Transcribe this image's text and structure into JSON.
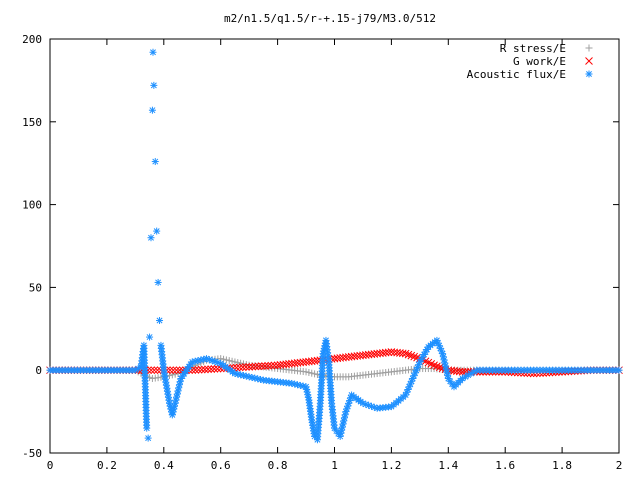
{
  "chart_data": {
    "type": "scatter",
    "title": "m2/n1.5/q1.5/r-+.15-j79/M3.0/512",
    "xlabel": "",
    "ylabel": "",
    "xlim": [
      0,
      2
    ],
    "ylim": [
      -50,
      200
    ],
    "x_ticks": [
      "0",
      "0.2",
      "0.4",
      "0.6",
      "0.8",
      "1",
      "1.2",
      "1.4",
      "1.6",
      "1.8",
      "2"
    ],
    "y_ticks": [
      "-50",
      "0",
      "50",
      "100",
      "150",
      "200"
    ],
    "grid": false,
    "legend_position": "top-right",
    "series": [
      {
        "name": "R stress/E",
        "marker": "plus",
        "color": "#a0a0a0",
        "points": [
          [
            0,
            0
          ],
          [
            0.3,
            0
          ],
          [
            0.33,
            -3
          ],
          [
            0.36,
            -5
          ],
          [
            0.4,
            -4
          ],
          [
            0.45,
            -2
          ],
          [
            0.5,
            2
          ],
          [
            0.55,
            6
          ],
          [
            0.6,
            7
          ],
          [
            0.65,
            5
          ],
          [
            0.7,
            3
          ],
          [
            0.75,
            2
          ],
          [
            0.8,
            1
          ],
          [
            0.85,
            0
          ],
          [
            0.9,
            -1
          ],
          [
            0.95,
            -3
          ],
          [
            1.0,
            -4
          ],
          [
            1.05,
            -4
          ],
          [
            1.1,
            -3
          ],
          [
            1.15,
            -2
          ],
          [
            1.2,
            -1
          ],
          [
            1.25,
            0
          ],
          [
            1.3,
            1
          ],
          [
            1.35,
            1
          ],
          [
            1.4,
            0
          ],
          [
            1.5,
            0
          ],
          [
            1.6,
            0
          ],
          [
            1.7,
            0
          ],
          [
            1.8,
            0
          ],
          [
            1.9,
            0
          ],
          [
            2.0,
            0
          ]
        ]
      },
      {
        "name": "G work/E",
        "marker": "cross",
        "color": "#ff0000",
        "points": [
          [
            0,
            0
          ],
          [
            0.3,
            0
          ],
          [
            0.4,
            0
          ],
          [
            0.5,
            0
          ],
          [
            0.6,
            1
          ],
          [
            0.7,
            2
          ],
          [
            0.8,
            3
          ],
          [
            0.9,
            5
          ],
          [
            0.95,
            6
          ],
          [
            1.0,
            7
          ],
          [
            1.05,
            8
          ],
          [
            1.1,
            9
          ],
          [
            1.15,
            10
          ],
          [
            1.2,
            11
          ],
          [
            1.25,
            10
          ],
          [
            1.3,
            7
          ],
          [
            1.35,
            3
          ],
          [
            1.4,
            0
          ],
          [
            1.45,
            -1
          ],
          [
            1.5,
            -1
          ],
          [
            1.6,
            -1
          ],
          [
            1.7,
            -2
          ],
          [
            1.8,
            -1
          ],
          [
            1.9,
            0
          ],
          [
            2.0,
            0
          ]
        ]
      },
      {
        "name": "Acoustic flux/E",
        "marker": "star",
        "color": "#1e90ff",
        "points": [
          [
            0,
            0
          ],
          [
            0.3,
            0
          ],
          [
            0.32,
            2
          ],
          [
            0.33,
            15
          ],
          [
            0.34,
            -35
          ],
          [
            0.345,
            -41
          ],
          [
            0.35,
            20
          ],
          [
            0.355,
            80
          ],
          [
            0.36,
            157
          ],
          [
            0.362,
            192
          ],
          [
            0.365,
            172
          ],
          [
            0.37,
            126
          ],
          [
            0.375,
            84
          ],
          [
            0.38,
            53
          ],
          [
            0.385,
            30
          ],
          [
            0.39,
            15
          ],
          [
            0.4,
            0
          ],
          [
            0.42,
            -20
          ],
          [
            0.43,
            -27
          ],
          [
            0.44,
            -20
          ],
          [
            0.46,
            -5
          ],
          [
            0.5,
            5
          ],
          [
            0.55,
            7
          ],
          [
            0.6,
            4
          ],
          [
            0.65,
            -2
          ],
          [
            0.7,
            -4
          ],
          [
            0.75,
            -6
          ],
          [
            0.8,
            -7
          ],
          [
            0.85,
            -8
          ],
          [
            0.9,
            -10
          ],
          [
            0.91,
            -18
          ],
          [
            0.92,
            -30
          ],
          [
            0.93,
            -40
          ],
          [
            0.94,
            -42
          ],
          [
            0.95,
            -20
          ],
          [
            0.96,
            10
          ],
          [
            0.97,
            18
          ],
          [
            0.98,
            5
          ],
          [
            0.99,
            -20
          ],
          [
            1.0,
            -35
          ],
          [
            1.02,
            -40
          ],
          [
            1.04,
            -25
          ],
          [
            1.06,
            -15
          ],
          [
            1.1,
            -20
          ],
          [
            1.15,
            -23
          ],
          [
            1.2,
            -22
          ],
          [
            1.25,
            -15
          ],
          [
            1.3,
            5
          ],
          [
            1.33,
            14
          ],
          [
            1.36,
            18
          ],
          [
            1.38,
            10
          ],
          [
            1.4,
            -5
          ],
          [
            1.42,
            -10
          ],
          [
            1.45,
            -5
          ],
          [
            1.5,
            0
          ],
          [
            1.6,
            0
          ],
          [
            1.7,
            0
          ],
          [
            1.8,
            0
          ],
          [
            1.9,
            0
          ],
          [
            2.0,
            0
          ]
        ]
      }
    ]
  }
}
